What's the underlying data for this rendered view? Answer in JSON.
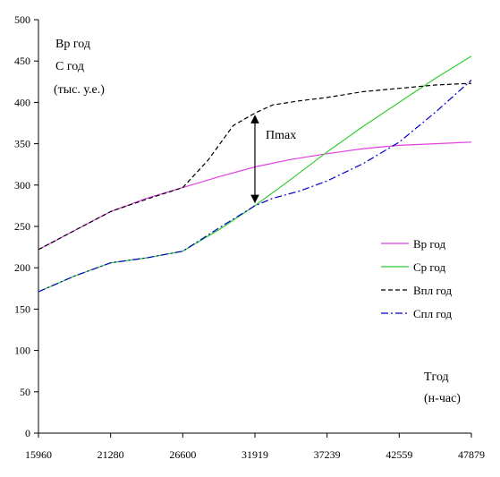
{
  "chart_data": {
    "type": "line",
    "x": [
      15960,
      21280,
      26600,
      31919,
      37239,
      42559,
      47879
    ],
    "x_tick_labels": [
      "15960",
      "21280",
      "26600",
      "31919",
      "37239",
      "42559",
      "47879"
    ],
    "ylim": [
      0,
      500
    ],
    "y_ticks": [
      0,
      50,
      100,
      150,
      200,
      250,
      300,
      350,
      400,
      450,
      500
    ],
    "grid": false,
    "legend_position": "right",
    "y_axis_title_lines": [
      "Вр год",
      "С год",
      "(тыс. у.е.)"
    ],
    "x_axis_title_lines": [
      "Tгод",
      "(н-час)"
    ],
    "annotation": "Пmax",
    "series": [
      {
        "name": "Вр год",
        "color": "#e040e0",
        "dash": "solid",
        "points": [
          [
            15960,
            222
          ],
          [
            18620,
            245
          ],
          [
            21280,
            268
          ],
          [
            23940,
            284
          ],
          [
            26600,
            297
          ],
          [
            29260,
            310
          ],
          [
            31919,
            322
          ],
          [
            34579,
            331
          ],
          [
            37239,
            338
          ],
          [
            39899,
            344
          ],
          [
            42559,
            348
          ],
          [
            45219,
            350
          ],
          [
            47879,
            352
          ]
        ]
      },
      {
        "name": "Ср год",
        "color": "#33cc33",
        "dash": "solid",
        "points": [
          [
            15960,
            171
          ],
          [
            18620,
            190
          ],
          [
            21280,
            206
          ],
          [
            23940,
            212
          ],
          [
            26600,
            220
          ],
          [
            29260,
            246
          ],
          [
            31919,
            275
          ],
          [
            34579,
            307
          ],
          [
            37239,
            340
          ],
          [
            39899,
            371
          ],
          [
            42559,
            400
          ],
          [
            45219,
            429
          ],
          [
            47879,
            456
          ]
        ]
      },
      {
        "name": "Впл год",
        "color": "#000000",
        "dash": "dashed",
        "points": [
          [
            15960,
            222
          ],
          [
            18620,
            245
          ],
          [
            21280,
            268
          ],
          [
            23940,
            283
          ],
          [
            26600,
            297
          ],
          [
            28460,
            330
          ],
          [
            30320,
            372
          ],
          [
            31919,
            387
          ],
          [
            33240,
            397
          ],
          [
            35240,
            402
          ],
          [
            37239,
            406
          ],
          [
            39899,
            413
          ],
          [
            42559,
            417
          ],
          [
            45219,
            421
          ],
          [
            47879,
            423
          ]
        ]
      },
      {
        "name": "Спл год",
        "color": "#0000cc",
        "dash": "dashdot",
        "points": [
          [
            15960,
            171
          ],
          [
            18620,
            190
          ],
          [
            21280,
            206
          ],
          [
            23940,
            212
          ],
          [
            26600,
            220
          ],
          [
            29260,
            248
          ],
          [
            31919,
            275
          ],
          [
            33240,
            284
          ],
          [
            35240,
            293
          ],
          [
            37239,
            305
          ],
          [
            39899,
            326
          ],
          [
            42559,
            352
          ],
          [
            45219,
            388
          ],
          [
            47879,
            427
          ]
        ]
      }
    ]
  }
}
